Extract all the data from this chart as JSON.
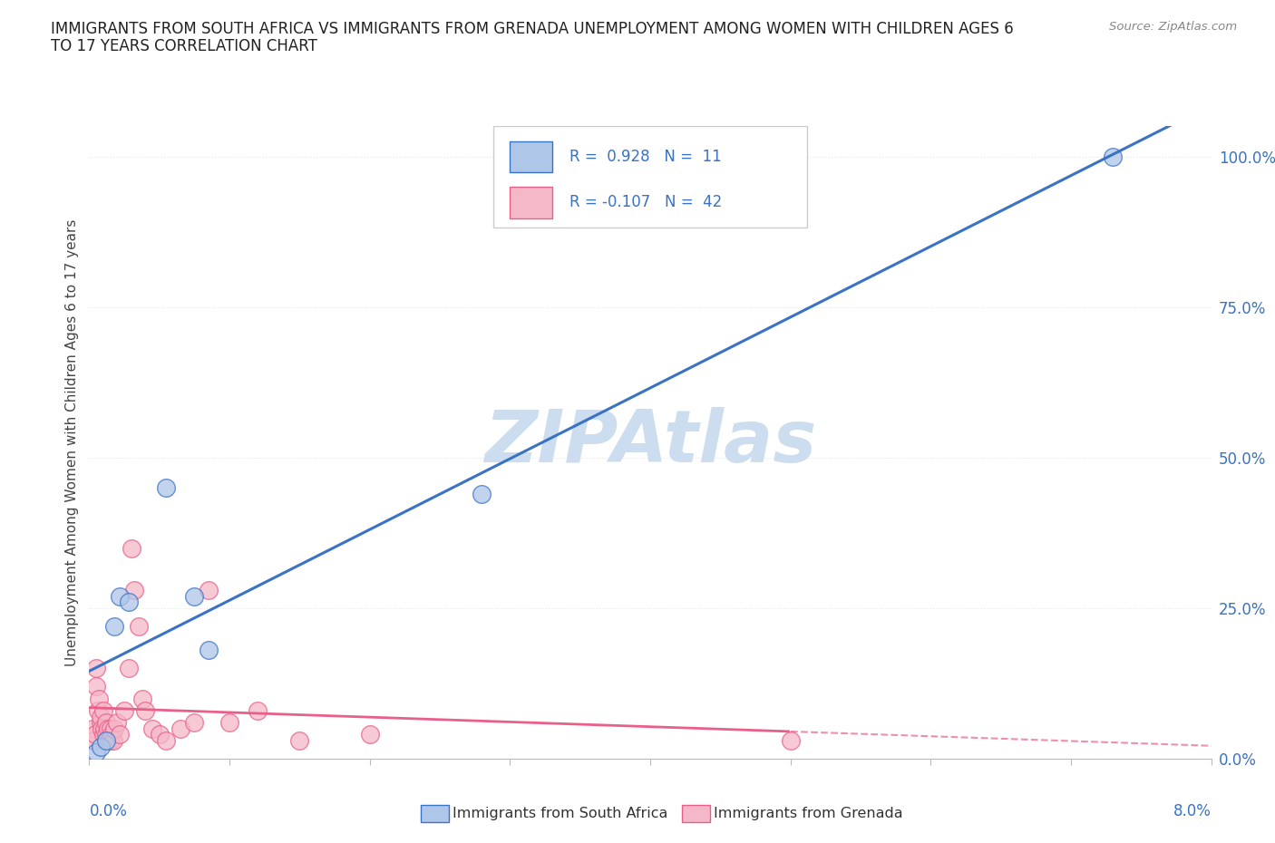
{
  "title_line1": "IMMIGRANTS FROM SOUTH AFRICA VS IMMIGRANTS FROM GRENADA UNEMPLOYMENT AMONG WOMEN WITH CHILDREN AGES 6",
  "title_line2": "TO 17 YEARS CORRELATION CHART",
  "source": "Source: ZipAtlas.com",
  "xlabel_bottom_left": "0.0%",
  "xlabel_bottom_right": "8.0%",
  "ylabel": "Unemployment Among Women with Children Ages 6 to 17 years",
  "ytick_labels": [
    "0.0%",
    "25.0%",
    "50.0%",
    "75.0%",
    "100.0%"
  ],
  "ytick_values": [
    0,
    25,
    50,
    75,
    100
  ],
  "legend_label1": "Immigrants from South Africa",
  "legend_label2": "Immigrants from Grenada",
  "R1": 0.928,
  "N1": 11,
  "R2": -0.107,
  "N2": 42,
  "color_sa": "#aec6e8",
  "color_gr": "#f5b8c8",
  "line_color_sa": "#3a72c4",
  "line_color_gr": "#e8608a",
  "watermark": "ZIPAtlas",
  "watermark_color": "#ccddef",
  "south_africa_x": [
    0.05,
    0.08,
    0.12,
    0.18,
    0.22,
    0.28,
    0.55,
    0.75,
    0.85,
    2.8,
    7.3
  ],
  "south_africa_y": [
    1,
    2,
    3,
    22,
    27,
    26,
    45,
    27,
    18,
    44,
    100
  ],
  "grenada_x": [
    0.02,
    0.03,
    0.04,
    0.05,
    0.05,
    0.06,
    0.07,
    0.08,
    0.08,
    0.09,
    0.1,
    0.1,
    0.11,
    0.12,
    0.12,
    0.13,
    0.14,
    0.15,
    0.15,
    0.16,
    0.17,
    0.18,
    0.2,
    0.22,
    0.25,
    0.28,
    0.3,
    0.32,
    0.35,
    0.38,
    0.4,
    0.45,
    0.5,
    0.55,
    0.65,
    0.75,
    0.85,
    1.0,
    1.2,
    1.5,
    2.0,
    5.0
  ],
  "grenada_y": [
    5,
    3,
    4,
    12,
    15,
    8,
    10,
    6,
    7,
    5,
    4,
    8,
    5,
    6,
    4,
    5,
    3,
    5,
    3,
    4,
    3,
    5,
    6,
    4,
    8,
    15,
    35,
    28,
    22,
    10,
    8,
    5,
    4,
    3,
    5,
    6,
    28,
    6,
    8,
    3,
    4,
    3
  ],
  "xmin": 0,
  "xmax": 8,
  "ymin": 0,
  "ymax": 105,
  "background_color": "#ffffff",
  "plot_bg_color": "#ffffff",
  "grid_color": "#e0e8f0",
  "grid_style": "dotted"
}
